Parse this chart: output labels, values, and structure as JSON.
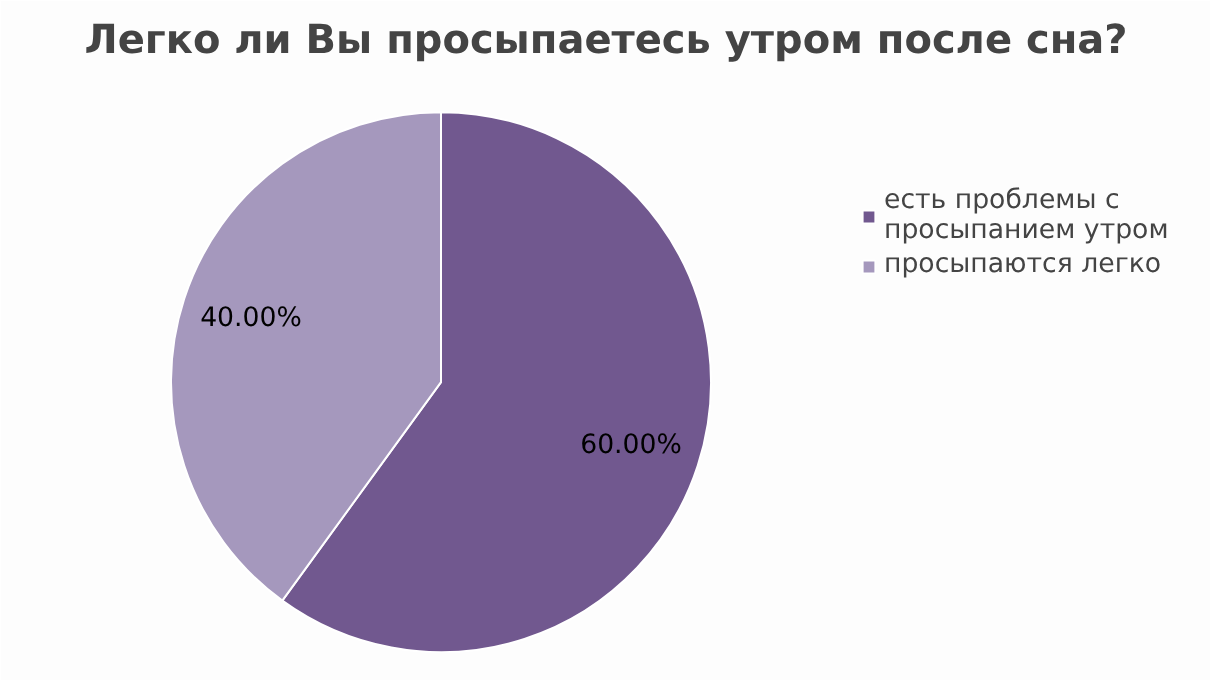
{
  "chart_data": {
    "type": "pie",
    "title": "Легко ли Вы просыпаетесь утром после сна?",
    "categories": [
      "есть проблемы с просыпанием утром",
      "просыпаются легко"
    ],
    "values": [
      60,
      40
    ],
    "colors": [
      "#71588f",
      "#a598bd"
    ],
    "value_labels": [
      "60.00%",
      "40.00%"
    ],
    "legend": "right"
  }
}
